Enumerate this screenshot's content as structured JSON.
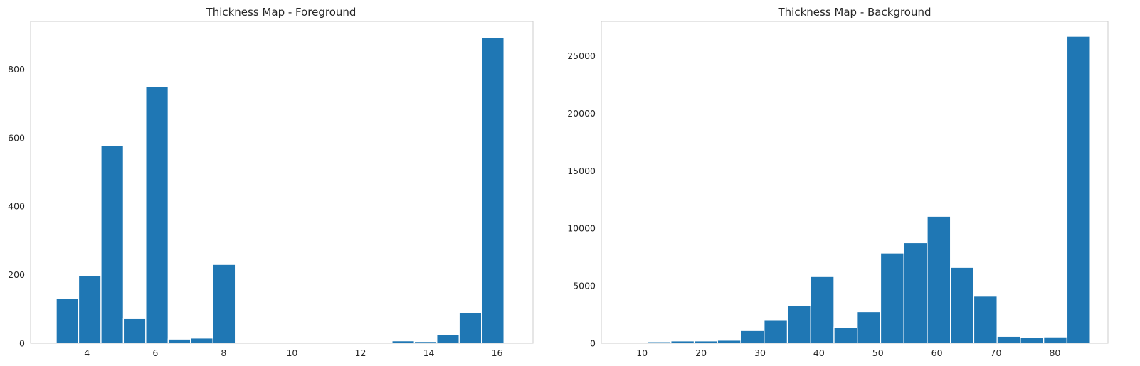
{
  "chart_data": [
    {
      "type": "bar",
      "subtype": "histogram",
      "title": "Thickness Map - Foreground",
      "xlabel": "",
      "ylabel": "",
      "xlim": [
        2.35,
        17.05
      ],
      "ylim": [
        0,
        940
      ],
      "xticks": [
        4,
        6,
        8,
        10,
        12,
        14,
        16
      ],
      "yticks": [
        0,
        200,
        400,
        600,
        800
      ],
      "grid": false,
      "bar_color": "#1f77b4",
      "bin_start": 3.1,
      "bin_width": 0.655,
      "values": [
        130,
        198,
        578,
        72,
        750,
        12,
        15,
        230,
        0,
        0,
        3,
        0,
        0,
        3,
        0,
        7,
        5,
        25,
        90,
        893
      ]
    },
    {
      "type": "bar",
      "subtype": "histogram",
      "title": "Thickness Map - Background",
      "xlabel": "",
      "ylabel": "",
      "xlim": [
        3.1,
        89.0
      ],
      "ylim": [
        0,
        28000
      ],
      "xticks": [
        10,
        20,
        30,
        40,
        50,
        60,
        70,
        80
      ],
      "yticks": [
        0,
        5000,
        10000,
        15000,
        20000,
        25000
      ],
      "grid": false,
      "bar_color": "#1f77b4",
      "bin_start": 7.0,
      "bin_width": 3.95,
      "values": [
        20,
        130,
        200,
        200,
        260,
        1100,
        2050,
        3300,
        5800,
        1400,
        2750,
        7850,
        8750,
        11050,
        6600,
        4100,
        600,
        500,
        550,
        26700
      ]
    }
  ]
}
